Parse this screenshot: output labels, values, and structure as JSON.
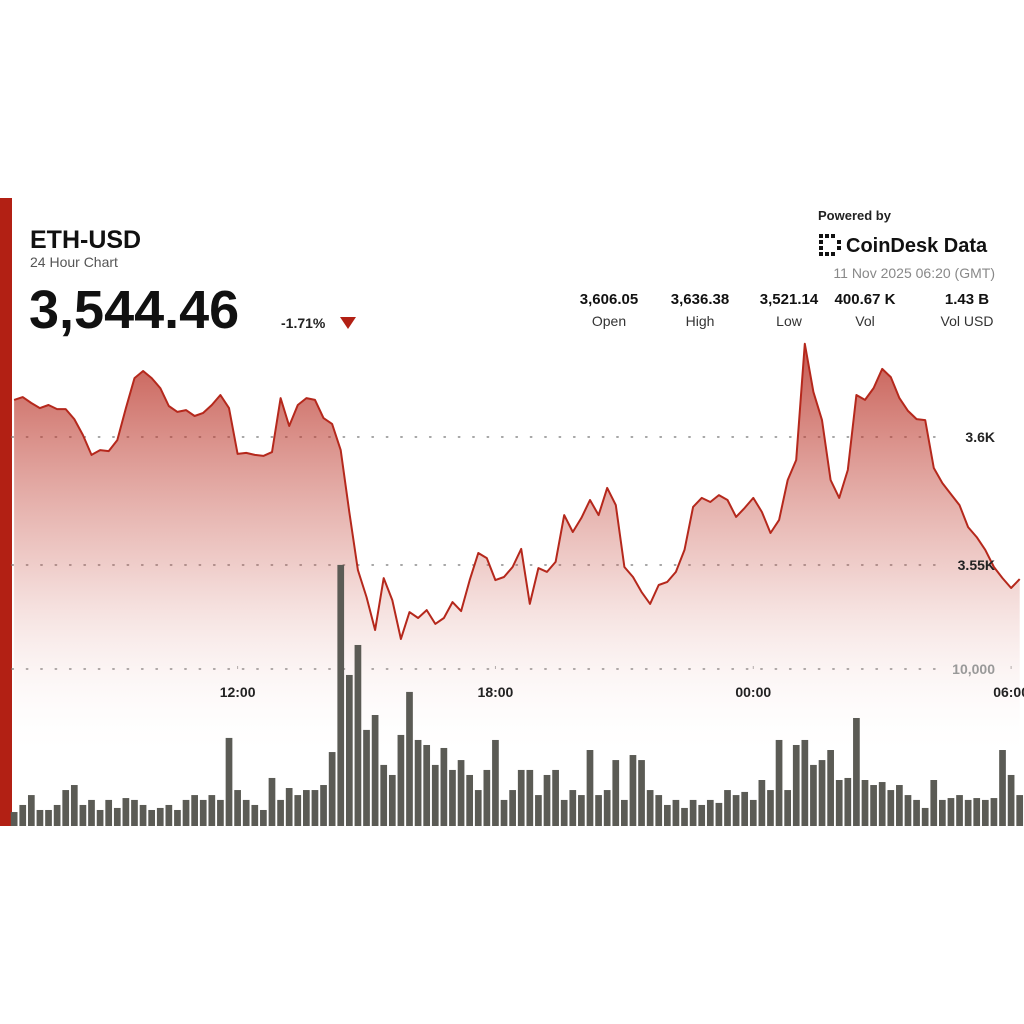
{
  "header": {
    "title": "ETH-USD",
    "subtitle": "24 Hour Chart",
    "price": {
      "value": 3544.46,
      "label": "3,544.46"
    },
    "change": {
      "value": -1.71,
      "label": "-1.71%"
    }
  },
  "branding": {
    "powered_by": "Powered by",
    "name": "CoinDesk Data",
    "timestamp": "11 Nov 2025 06:20 (GMT)"
  },
  "stats": [
    {
      "value": 3606.05,
      "label": "3,606.05",
      "name": "Open"
    },
    {
      "value": 3636.38,
      "label": "3,636.38",
      "name": "High"
    },
    {
      "value": 3521.14,
      "label": "3,521.14",
      "name": "Low"
    },
    {
      "value": 400670,
      "label": "400.67 K",
      "name": "Vol"
    },
    {
      "value": 1430000000,
      "label": "1.43 B",
      "name": "Vol USD"
    }
  ],
  "chart_data": {
    "type": "area",
    "x": [
      6.8,
      7,
      7.2,
      7.4,
      7.6,
      7.8,
      8,
      8.2,
      8.4,
      8.6,
      8.8,
      9,
      9.2,
      9.4,
      9.6,
      9.8,
      10,
      10.2,
      10.4,
      10.6,
      10.8,
      11,
      11.2,
      11.4,
      11.6,
      11.8,
      12,
      12.2,
      12.4,
      12.6,
      12.8,
      13,
      13.2,
      13.4,
      13.6,
      13.8,
      14,
      14.2,
      14.4,
      14.6,
      14.8,
      15,
      15.2,
      15.4,
      15.6,
      15.8,
      16,
      16.2,
      16.4,
      16.6,
      16.8,
      17,
      17.2,
      17.4,
      17.6,
      17.8,
      18,
      18.2,
      18.4,
      18.6,
      18.8,
      19,
      19.2,
      19.4,
      19.6,
      19.8,
      20,
      20.2,
      20.4,
      20.6,
      20.8,
      21,
      21.2,
      21.4,
      21.6,
      21.8,
      22,
      22.2,
      22.4,
      22.6,
      22.8,
      23,
      23.2,
      23.4,
      23.6,
      23.8,
      24,
      24.2,
      24.4,
      24.6,
      24.8,
      25,
      25.2,
      25.4,
      25.6,
      25.8,
      26,
      26.2,
      26.4,
      26.6,
      26.8,
      27,
      27.2,
      27.4,
      27.6,
      27.8,
      28,
      28.2,
      28.4,
      28.6,
      28.8,
      29,
      29.2,
      29.4,
      29.6,
      29.8,
      30,
      30.2
    ],
    "xlim": [
      6.75,
      30.3
    ],
    "xticks": [
      {
        "value": 12,
        "label": "12:00"
      },
      {
        "value": 18,
        "label": "18:00"
      },
      {
        "value": 24,
        "label": "00:00"
      },
      {
        "value": 30,
        "label": "06:00"
      }
    ],
    "ylim": [
      3500,
      3650
    ],
    "yticks": [
      {
        "value": 3600,
        "label": "3.6K"
      },
      {
        "value": 3550,
        "label": "3.55K"
      }
    ],
    "y2lim": [
      0,
      20000
    ],
    "y2ticks": [
      {
        "value": 10000,
        "label": "10,000"
      }
    ],
    "grid": true,
    "series": [
      {
        "color": "#b5281c",
        "values": [
          3614.5,
          3615.6,
          3613.3,
          3611.3,
          3612.5,
          3610.9,
          3610.9,
          3607.0,
          3600.8,
          3593.0,
          3594.9,
          3594.5,
          3598.8,
          3611.3,
          3623.0,
          3625.8,
          3623.0,
          3619.1,
          3612.1,
          3609.8,
          3610.5,
          3608.2,
          3609.4,
          3612.5,
          3616.4,
          3611.3,
          3593.4,
          3593.8,
          3593.0,
          3592.6,
          3594.1,
          3615.2,
          3604.3,
          3612.5,
          3615.2,
          3614.5,
          3607.4,
          3605.1,
          3594.9,
          3570.7,
          3548.0,
          3537.5,
          3524.6,
          3544.9,
          3536.3,
          3521.1,
          3531.6,
          3529.3,
          3532.4,
          3527.0,
          3529.3,
          3535.5,
          3532.0,
          3544.1,
          3554.7,
          3552.7,
          3544.1,
          3545.3,
          3549.2,
          3556.3,
          3534.8,
          3548.8,
          3547.3,
          3551.2,
          3569.5,
          3562.9,
          3568.4,
          3575.4,
          3569.5,
          3580.1,
          3573.4,
          3549.2,
          3545.3,
          3539.5,
          3534.8,
          3542.2,
          3543.4,
          3547.3,
          3555.9,
          3572.7,
          3576.2,
          3574.6,
          3577.3,
          3575.4,
          3568.8,
          3572.3,
          3576.2,
          3570.7,
          3562.5,
          3567.6,
          3583.2,
          3591.0,
          3636.4,
          3617.6,
          3606.6,
          3583.2,
          3576.2,
          3587.1,
          3616.4,
          3614.5,
          3619.1,
          3626.6,
          3623.4,
          3615.2,
          3610.2,
          3607.0,
          3606.6,
          3587.9,
          3582.0,
          3577.7,
          3573.4,
          3564.8,
          3560.9,
          3555.9,
          3549.2,
          3544.9,
          3541.0,
          3544.5
        ]
      },
      {
        "type": "bar",
        "axis": "y2",
        "color": "#5b5b55",
        "values": [
          890,
          1340,
          1970,
          1020,
          1020,
          1340,
          2290,
          2610,
          1340,
          1660,
          1020,
          1660,
          1150,
          1780,
          1660,
          1340,
          1020,
          1150,
          1340,
          1020,
          1660,
          1970,
          1660,
          1970,
          1660,
          5610,
          2290,
          1660,
          1340,
          1020,
          3060,
          1660,
          2420,
          1970,
          2290,
          2290,
          2610,
          4710,
          16630,
          9620,
          11530,
          6120,
          7070,
          3890,
          3250,
          5800,
          8540,
          5480,
          5160,
          3890,
          4970,
          3570,
          4200,
          3250,
          2290,
          3570,
          5480,
          1660,
          2290,
          3570,
          3570,
          1970,
          3250,
          3570,
          1660,
          2290,
          1970,
          4840,
          1970,
          2290,
          4200,
          1660,
          4520,
          4200,
          2290,
          1970,
          1340,
          1660,
          1150,
          1660,
          1340,
          1660,
          1470,
          2290,
          1970,
          2170,
          1660,
          2930,
          2290,
          5480,
          2290,
          5160,
          5480,
          3890,
          4200,
          4840,
          2930,
          3060,
          6880,
          2930,
          2610,
          2800,
          2290,
          2610,
          1970,
          1660,
          1150,
          2930,
          1660,
          1780,
          1970,
          1660,
          1780,
          1660,
          1780,
          4840,
          3250,
          1970
        ]
      }
    ]
  }
}
